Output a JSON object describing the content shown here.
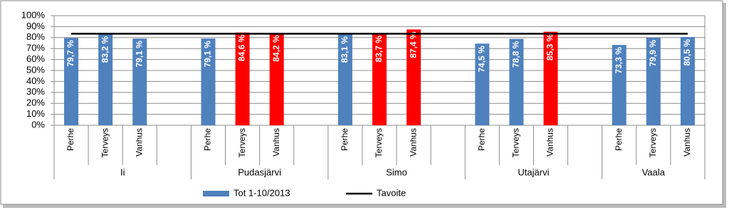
{
  "chart_data": {
    "type": "bar",
    "categories": [
      "Perhe",
      "Terveys",
      "Vanhus",
      null,
      "Perhe",
      "Terveys",
      "Vanhus",
      null,
      "Perhe",
      "Terveys",
      "Vanhus",
      null,
      "Perhe",
      "Terveys",
      "Vanhus",
      null,
      "Perhe",
      "Terveys",
      "Vanhus"
    ],
    "groups": [
      "Ii",
      "Pudasjärvi",
      "Simo",
      "Utajärvi",
      "Vaala"
    ],
    "series": [
      {
        "name": "Tot 1-10/2013",
        "type": "bar",
        "color": "#4f81bd",
        "colors": [
          "#4f81bd",
          "#4f81bd",
          "#4f81bd",
          null,
          "#4f81bd",
          "#ff0000",
          "#ff0000",
          null,
          "#4f81bd",
          "#ff0000",
          "#ff0000",
          null,
          "#4f81bd",
          "#4f81bd",
          "#ff0000",
          null,
          "#4f81bd",
          "#4f81bd",
          "#4f81bd"
        ],
        "values": [
          79.7,
          83.2,
          79.1,
          null,
          79.1,
          84.6,
          84.2,
          null,
          83.1,
          83.7,
          87.4,
          null,
          74.5,
          78.8,
          85.3,
          null,
          73.3,
          79.9,
          80.5
        ],
        "value_labels": [
          "79,7 %",
          "83,2 %",
          "79,1 %",
          null,
          "79,1 %",
          "84,6 %",
          "84,2 %",
          null,
          "83,1 %",
          "83,7 %",
          "87,4 %",
          null,
          "74,5 %",
          "78,8 %",
          "85,3 %",
          null,
          "73,3 %",
          "79,9 %",
          "80,5 %"
        ]
      },
      {
        "name": "Tavoite",
        "type": "line",
        "color": "#000000",
        "values": [
          83.5,
          83.5,
          83.5,
          83.5,
          83.5,
          83.5,
          83.5,
          83.5,
          83.5,
          83.5,
          83.5,
          83.5,
          83.5,
          83.5,
          83.5,
          83.5,
          83.5,
          83.5,
          83.5
        ]
      }
    ],
    "ylim": [
      0,
      100
    ],
    "yticks": [
      {
        "value": 0,
        "label": "0%"
      },
      {
        "value": 10,
        "label": "10%"
      },
      {
        "value": 20,
        "label": "20%"
      },
      {
        "value": 30,
        "label": "30%"
      },
      {
        "value": 40,
        "label": "40%"
      },
      {
        "value": 50,
        "label": "50%"
      },
      {
        "value": 60,
        "label": "60%"
      },
      {
        "value": 70,
        "label": "70%"
      },
      {
        "value": 80,
        "label": "80%"
      },
      {
        "value": 90,
        "label": "90%"
      },
      {
        "value": 100,
        "label": "100%"
      }
    ],
    "grid": true,
    "legend": "bottom"
  }
}
